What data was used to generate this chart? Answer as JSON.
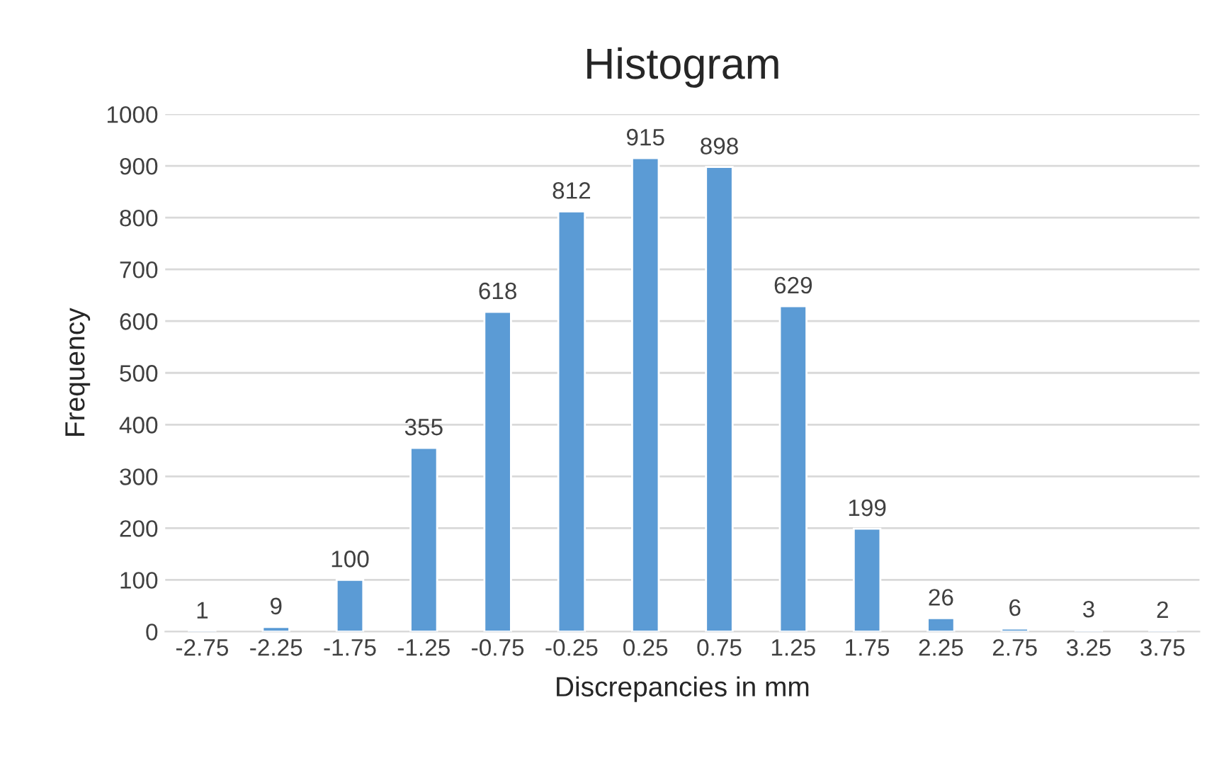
{
  "chart_data": {
    "type": "bar",
    "title": "Histogram",
    "xlabel": "Discrepancies in mm",
    "ylabel": "Frequency",
    "categories": [
      "-2.75",
      "-2.25",
      "-1.75",
      "-1.25",
      "-0.75",
      "-0.25",
      "0.25",
      "0.75",
      "1.25",
      "1.75",
      "2.25",
      "2.75",
      "3.25",
      "3.75"
    ],
    "values": [
      1,
      9,
      100,
      355,
      618,
      812,
      915,
      898,
      629,
      199,
      26,
      6,
      3,
      2
    ],
    "color": "#5b9bd5",
    "ylim": [
      0,
      1000
    ],
    "yticks": [
      0,
      100,
      200,
      300,
      400,
      500,
      600,
      700,
      800,
      900,
      1000
    ],
    "grid": "y",
    "data_labels": true
  }
}
